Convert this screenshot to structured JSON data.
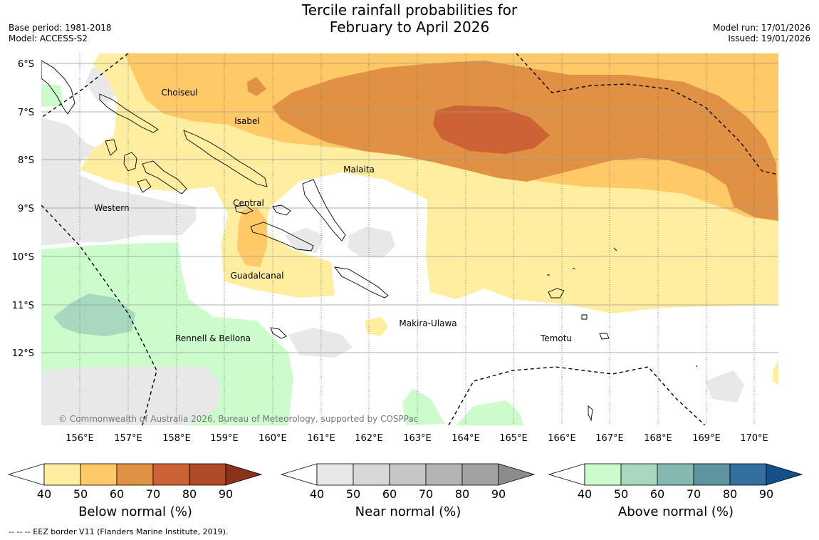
{
  "header": {
    "title_line1": "Tercile rainfall probabilities for",
    "title_line2": "February to April 2026",
    "base_period": "Base period: 1981-2018",
    "model": "Model: ACCESS-S2",
    "model_run": "Model run: 17/01/2026",
    "issued": "Issued: 19/01/2026"
  },
  "map": {
    "lon_labels": [
      "156°E",
      "157°E",
      "158°E",
      "159°E",
      "160°E",
      "161°E",
      "162°E",
      "163°E",
      "164°E",
      "165°E",
      "166°E",
      "167°E",
      "168°E",
      "169°E",
      "170°E"
    ],
    "lat_labels": [
      "6°S",
      "7°S",
      "8°S",
      "9°S",
      "10°S",
      "11°S",
      "12°S"
    ],
    "place_labels": [
      "Choiseul",
      "Isabel",
      "Malaita",
      "Western",
      "Central",
      "Guadalcanal",
      "Rennell & Bellona",
      "Makira-Ulawa",
      "Temotu"
    ],
    "copyright": "© Commonwealth of Australia 2026, Bureau of Meteorology, supported by COSPPac"
  },
  "legends": [
    {
      "title": "Below normal (%)",
      "ticks": [
        "40",
        "50",
        "60",
        "70",
        "80",
        "90"
      ],
      "colors": [
        "#ffeda0",
        "#fec966",
        "#e09143",
        "#cd6334",
        "#b04b27",
        "#8b3318"
      ]
    },
    {
      "title": "Near normal (%)",
      "ticks": [
        "40",
        "50",
        "60",
        "70",
        "80",
        "90"
      ],
      "colors": [
        "#e8e8e8",
        "#d8d8d8",
        "#c6c6c6",
        "#b4b4b4",
        "#a2a2a2",
        "#8c8c8c"
      ]
    },
    {
      "title": "Above normal (%)",
      "ticks": [
        "40",
        "50",
        "60",
        "70",
        "80",
        "90"
      ],
      "colors": [
        "#ccfccb",
        "#a6d9bd",
        "#84b8b0",
        "#5e94a0",
        "#336fa0",
        "#154f87"
      ]
    }
  ],
  "footer": {
    "eez_note": "--  --  -- EEZ border V11 (Flanders Marine Institute, 2019)."
  }
}
